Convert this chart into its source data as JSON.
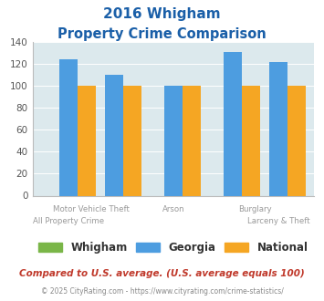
{
  "title_line1": "2016 Whigham",
  "title_line2": "Property Crime Comparison",
  "groups": [
    {
      "label_top": "Motor Vehicle Theft",
      "label_bot": "All Property Crime",
      "whigham": 0,
      "georgia": 124,
      "national": 100
    },
    {
      "label_top": "Motor Vehicle Theft",
      "label_bot": "",
      "whigham": 0,
      "georgia": 110,
      "national": 100
    },
    {
      "label_top": "Arson",
      "label_bot": "Arson",
      "whigham": 0,
      "georgia": 100,
      "national": 100
    },
    {
      "label_top": "Burglary",
      "label_bot": "Burglary",
      "whigham": 0,
      "georgia": 131,
      "national": 100
    },
    {
      "label_top": "Larceny & Theft",
      "label_bot": "Larceny & Theft",
      "whigham": 0,
      "georgia": 122,
      "national": 100
    }
  ],
  "color_whigham": "#7ab648",
  "color_georgia": "#4d9de0",
  "color_national": "#f5a623",
  "bg_color": "#dce9ed",
  "ylim": [
    0,
    140
  ],
  "yticks": [
    0,
    20,
    40,
    60,
    80,
    100,
    120,
    140
  ],
  "legend_labels": [
    "Whigham",
    "Georgia",
    "National"
  ],
  "footnote1": "Compared to U.S. average. (U.S. average equals 100)",
  "footnote2": "© 2025 CityRating.com - https://www.cityrating.com/crime-statistics/",
  "title_color": "#1a5fa8",
  "footnote1_color": "#c0392b",
  "footnote2_color": "#888888",
  "xlabel_color": "#999999",
  "group_centers": [
    0.55,
    1.25,
    2.15,
    3.05,
    3.75
  ],
  "bar_width": 0.28,
  "xlim": [
    0.0,
    4.3
  ]
}
